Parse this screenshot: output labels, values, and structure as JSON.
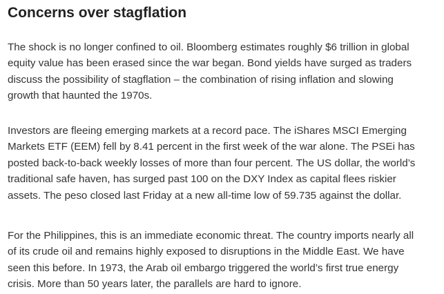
{
  "article": {
    "heading": "Concerns over stagflation",
    "paragraphs": [
      {
        "lines": [
          "The shock is no longer confined to oil. Bloomberg estimates roughly $6 trillion in global",
          "equity value has been erased since the war began. Bond yields have surged as traders",
          "discuss the possibility of stagflation – the combination of rising inflation and slowing",
          "growth that haunted the 1970s."
        ]
      },
      {
        "lines": [
          "Investors are fleeing emerging markets at a record pace. The iShares MSCI Emerging",
          "Markets ETF (EEM) fell by 8.41 percent in the first week of the war alone. The PSEi has",
          "posted back-to-back weekly losses of more than four percent. The US dollar, the world’s",
          "traditional safe haven, has surged past 100 on the DXY Index as capital flees riskier",
          "assets. The peso closed last Friday at a new all-time low of 59.735 against the dollar."
        ]
      },
      {
        "lines": [
          "For the Philippines, this is an immediate economic threat. The country imports nearly all",
          "of its crude oil and remains highly exposed to disruptions in the Middle East. We have",
          "seen this before. In 1973, the Arab oil embargo triggered the world’s first true energy",
          "crisis. More than 50 years later, the parallels are hard to ignore."
        ]
      }
    ]
  }
}
